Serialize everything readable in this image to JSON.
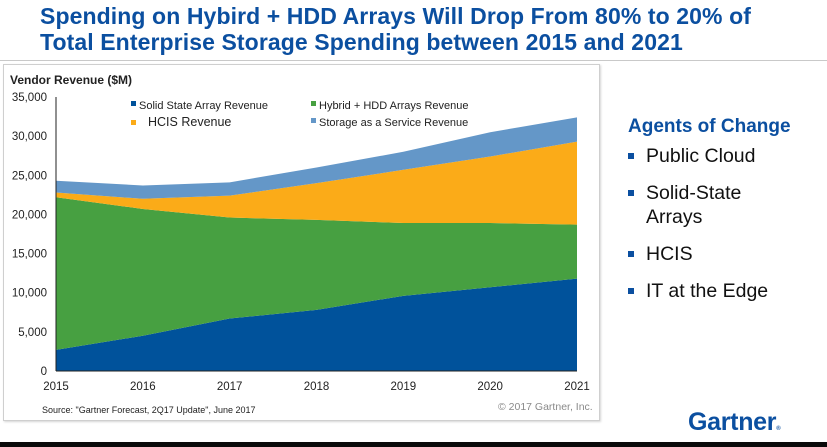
{
  "slide": {
    "title_line1": "Spending on Hybird + HDD Arrays Will Drop From 80% to 20% of",
    "title_line2": "Total Enterprise Storage Spending between 2015 and 2021",
    "source": "Source: \"Gartner Forecast, 2Q17 Update\", June 2017",
    "copyright": "© 2017 Gartner, Inc.",
    "logo": "Gartner",
    "logo_mark": "®"
  },
  "agents": {
    "title": "Agents of Change",
    "items": [
      {
        "line1": "Public Cloud",
        "line2": ""
      },
      {
        "line1": "Solid-State",
        "line2": "Arrays"
      },
      {
        "line1": "HCIS",
        "line2": ""
      },
      {
        "line1": "IT at the Edge",
        "line2": ""
      }
    ]
  },
  "chart_data": {
    "type": "area",
    "stacked": true,
    "title": "",
    "ylabel": "Vendor Revenue ($M)",
    "xlabel": "",
    "categories": [
      "2015",
      "2016",
      "2017",
      "2018",
      "2019",
      "2020",
      "2021"
    ],
    "ylim": [
      0,
      35000
    ],
    "yticks": [
      0,
      5000,
      10000,
      15000,
      20000,
      25000,
      30000,
      35000
    ],
    "ytick_labels": [
      "0",
      "5,000",
      "10,000",
      "15,000",
      "20,000",
      "25,000",
      "30,000",
      "35,000"
    ],
    "grid": false,
    "legend_position": "top",
    "series": [
      {
        "name": "Solid State Array Revenue",
        "color": "#00529b",
        "values": [
          2700,
          4500,
          6700,
          7800,
          9600,
          10700,
          11800
        ]
      },
      {
        "name": "Hybrid + HDD Arrays Revenue",
        "color": "#47a041",
        "values": [
          19500,
          16200,
          12900,
          11500,
          9300,
          8200,
          6900
        ]
      },
      {
        "name": "HCIS Revenue",
        "color": "#fbab18",
        "values": [
          600,
          1300,
          2800,
          4700,
          6800,
          8500,
          10600
        ]
      },
      {
        "name": "Storage as a Service Revenue",
        "color": "#6497c8",
        "values": [
          1500,
          1700,
          1700,
          2000,
          2300,
          3100,
          3100
        ]
      }
    ],
    "legend_order": [
      0,
      1,
      2,
      3
    ]
  }
}
